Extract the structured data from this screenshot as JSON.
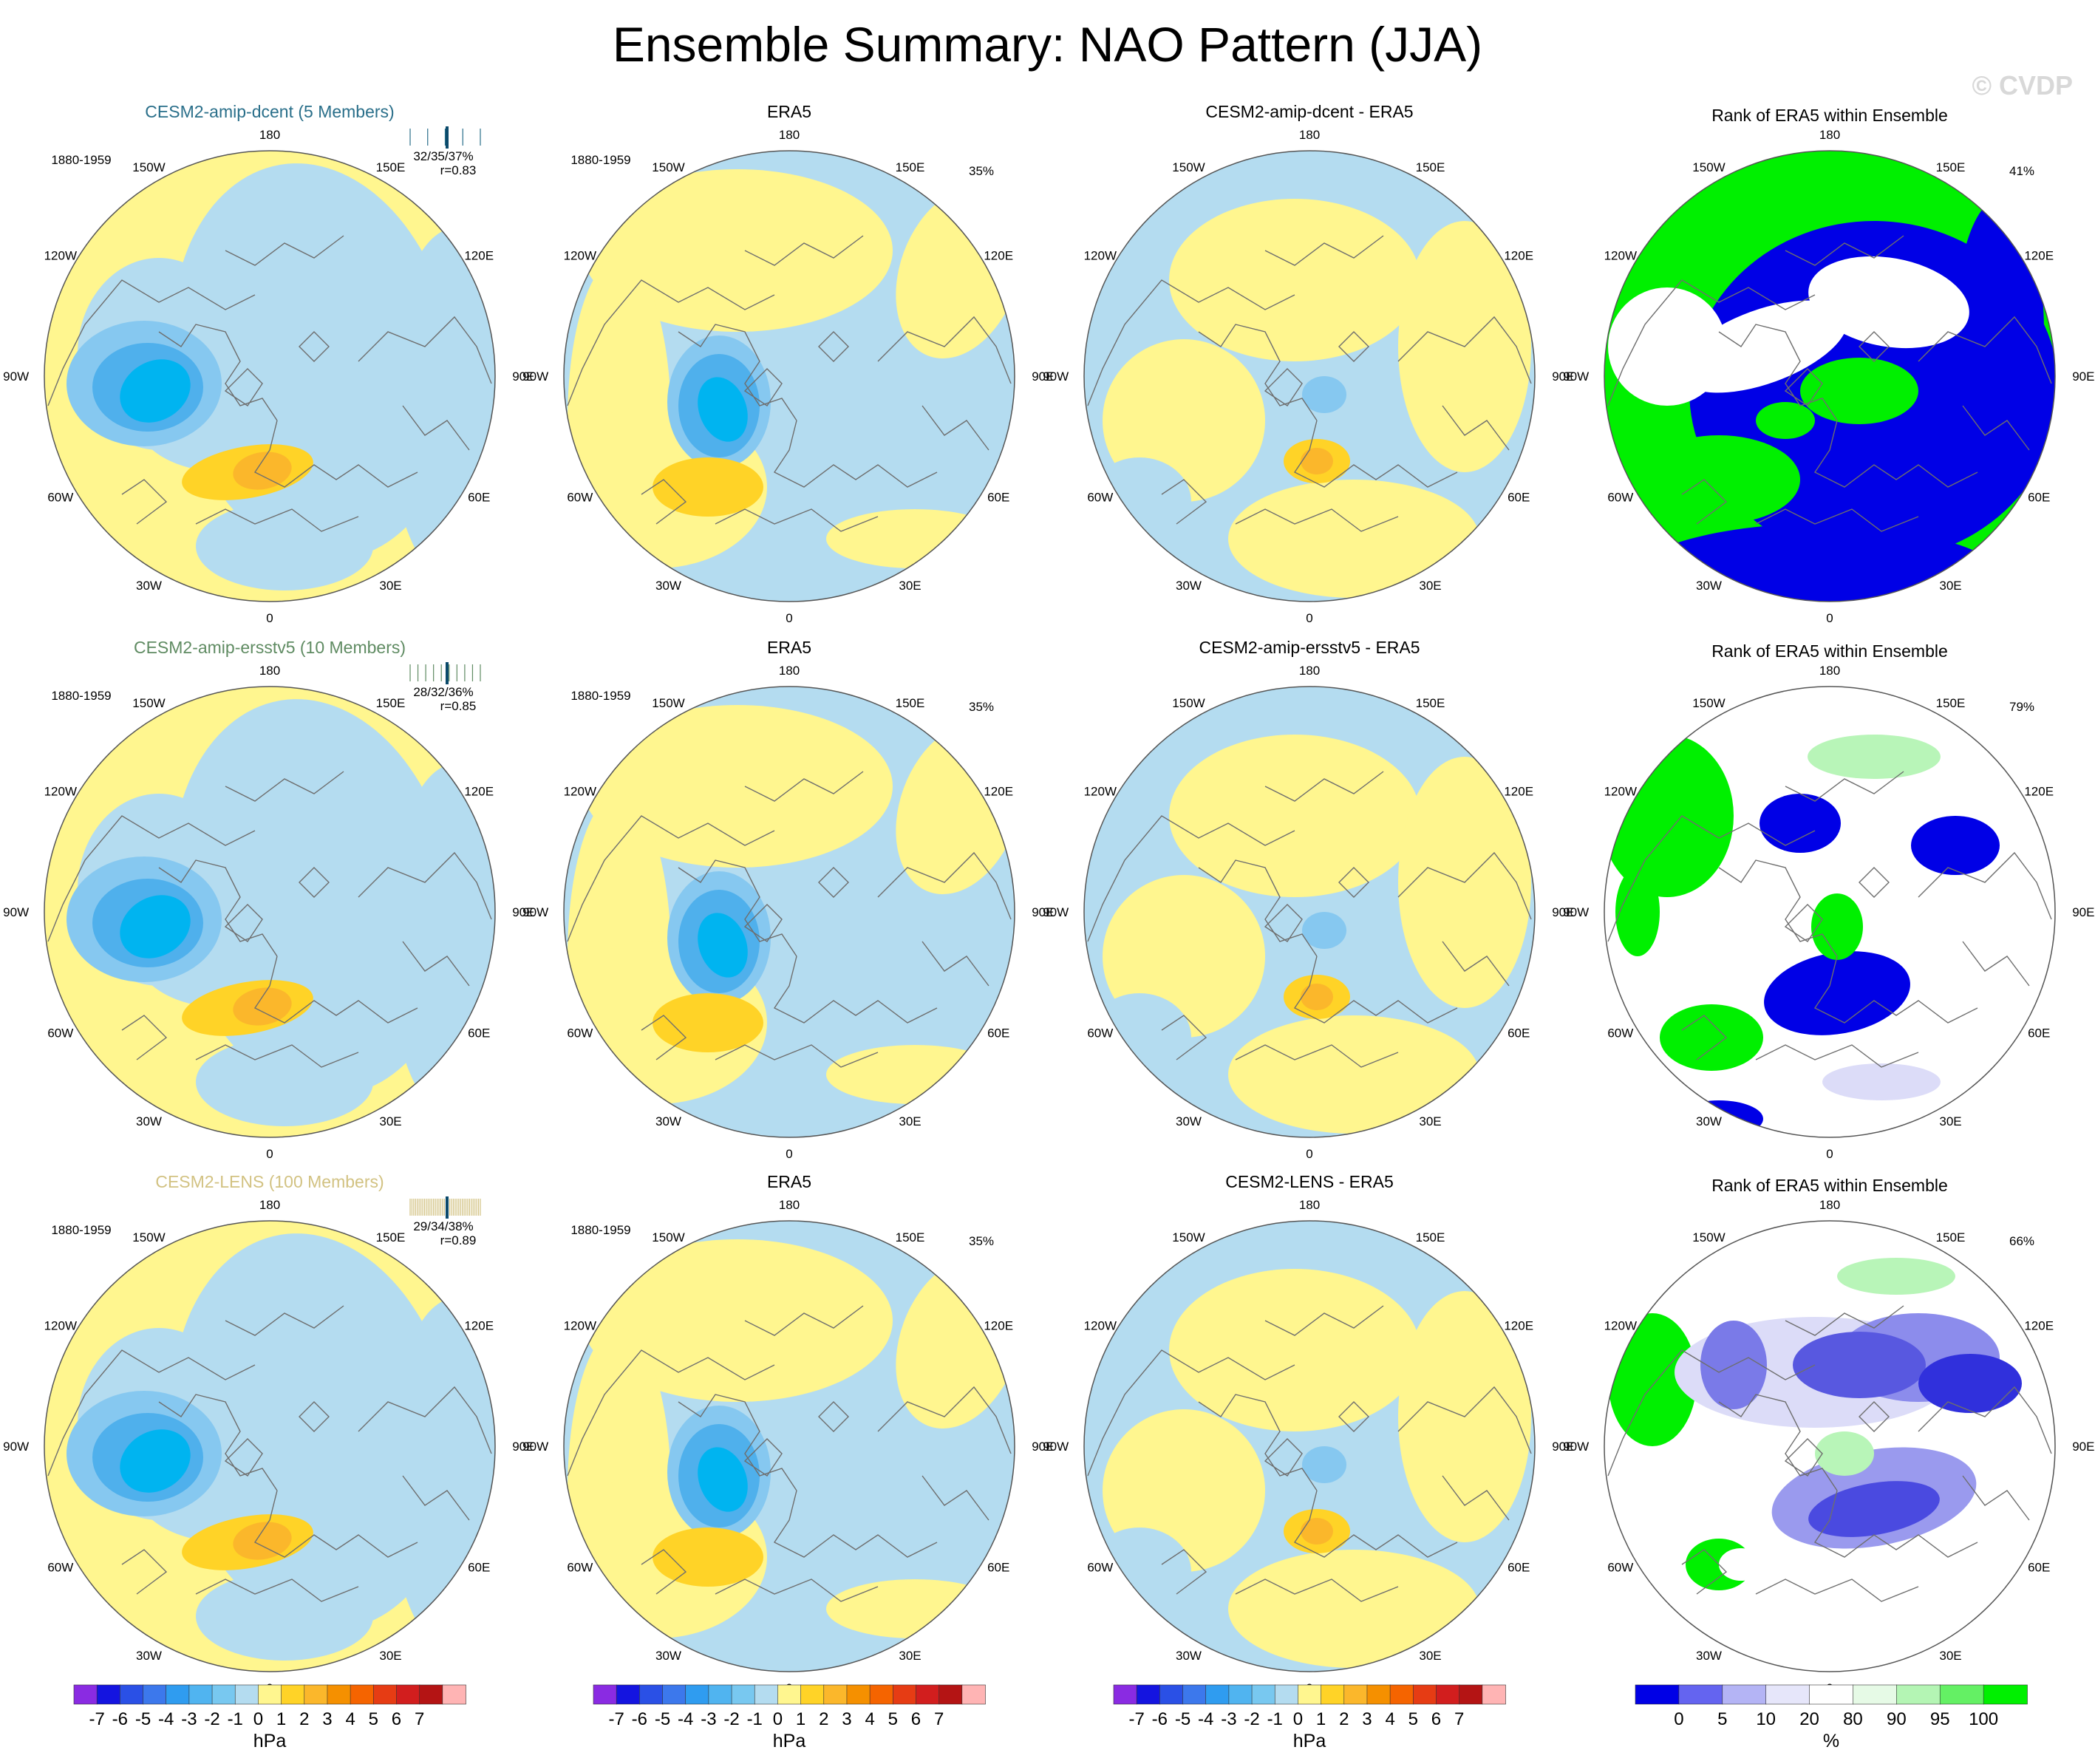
{
  "title": "Ensemble Summary: NAO Pattern (JJA)",
  "watermark": "© CVDP",
  "lon_labels": [
    "180",
    "150E",
    "120E",
    "90E",
    "60E",
    "30E",
    "0",
    "30W",
    "60W",
    "90W",
    "120W",
    "150W"
  ],
  "colors": {
    "yellow": "#fff68f",
    "lightblue": "#b4dcf0",
    "blue1": "#86c8f0",
    "blue2": "#4fb0ec",
    "blue3": "#00b4f0",
    "orange1": "#ffd327",
    "orange2": "#fbb72b",
    "rank_blue": "#0000e6",
    "rank_green": "#00f000",
    "rank_lightgreen": "#b8f5b8"
  },
  "rows": [
    {
      "model": {
        "title": "CESM2-amip-dcent (5 Members)",
        "title_color": "#2a6f8a",
        "period": "1880-1959",
        "stats": "32/35/37%",
        "corr": "r=0.83"
      },
      "obs": {
        "title": "ERA5",
        "period": "1880-1959",
        "pct": "35%"
      },
      "diff": {
        "title": "CESM2-amip-dcent - ERA5"
      },
      "rank": {
        "title": "Rank of ERA5 within Ensemble",
        "pct": "41%"
      }
    },
    {
      "model": {
        "title": "CESM2-amip-ersstv5 (10 Members)",
        "title_color": "#5f8b62",
        "period": "1880-1959",
        "stats": "28/32/36%",
        "corr": "r=0.85"
      },
      "obs": {
        "title": "ERA5",
        "period": "1880-1959",
        "pct": "35%"
      },
      "diff": {
        "title": "CESM2-amip-ersstv5 - ERA5"
      },
      "rank": {
        "title": "Rank of ERA5 within Ensemble",
        "pct": "79%"
      }
    },
    {
      "model": {
        "title": "CESM2-LENS (100 Members)",
        "title_color": "#d2c282",
        "period": "1880-1959",
        "stats": "29/34/38%",
        "corr": "r=0.89"
      },
      "obs": {
        "title": "ERA5",
        "period": "1880-1959",
        "pct": "35%"
      },
      "diff": {
        "title": "CESM2-LENS - ERA5"
      },
      "rank": {
        "title": "Rank of ERA5 within Ensemble",
        "pct": "66%"
      }
    }
  ],
  "colorbar_hpa": {
    "labels": [
      "-7",
      "-6",
      "-5",
      "-4",
      "-3",
      "-2",
      "-1",
      "0",
      "1",
      "2",
      "3",
      "4",
      "5",
      "6",
      "7"
    ],
    "unit": "hPa",
    "colors": [
      "#8a2be2",
      "#1414e0",
      "#2a50e6",
      "#3c78ec",
      "#2f9cf0",
      "#50b4f0",
      "#78c8f0",
      "#b4dcf0",
      "#fff68f",
      "#ffd327",
      "#fbb72b",
      "#f59000",
      "#f56400",
      "#e63c14",
      "#d21e1e",
      "#b41414",
      "#ffb4b4"
    ]
  },
  "colorbar_rank": {
    "labels": [
      "0",
      "5",
      "10",
      "20",
      "80",
      "90",
      "95",
      "100"
    ],
    "unit": "%",
    "colors": [
      "#0000e6",
      "#6464f0",
      "#b4b4f5",
      "#e6e6fa",
      "#ffffff",
      "#e6fae6",
      "#b4f5b4",
      "#64f064",
      "#00f000"
    ]
  }
}
